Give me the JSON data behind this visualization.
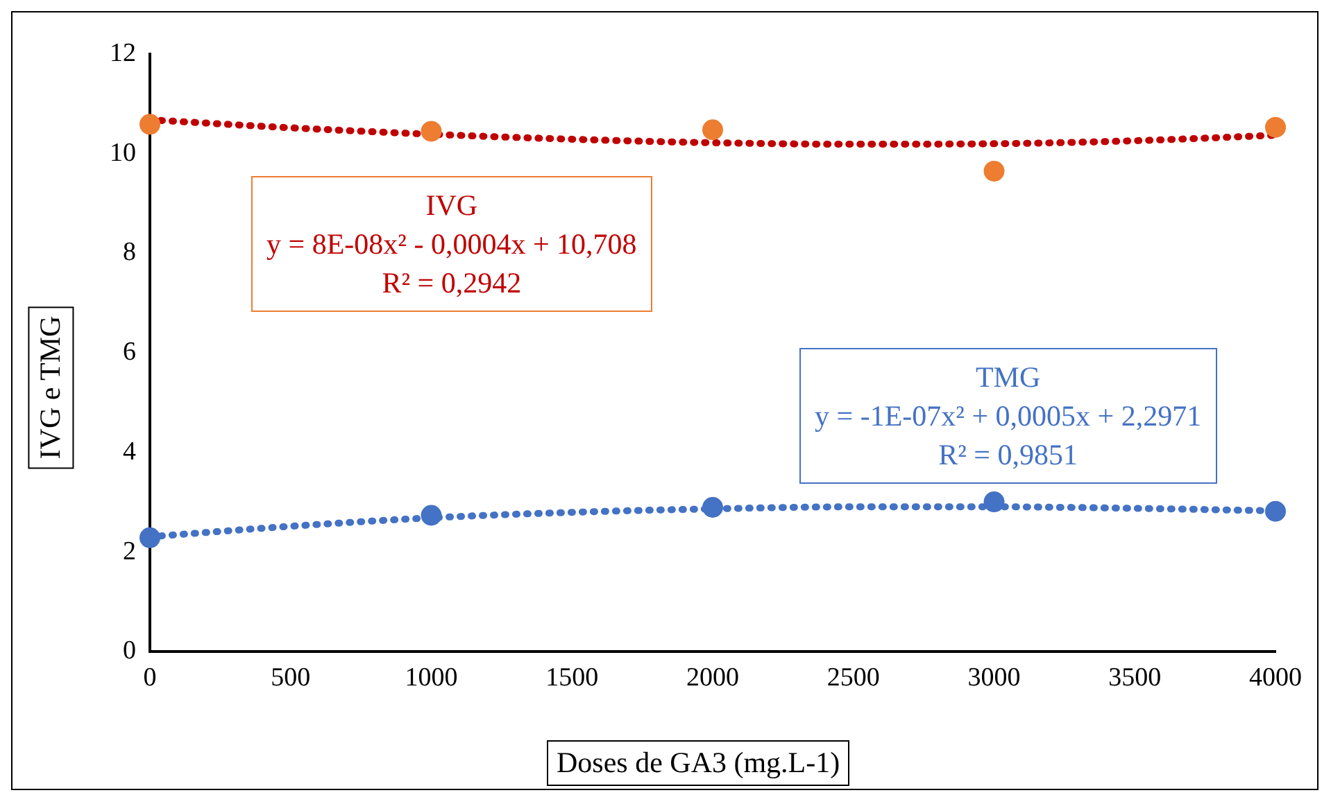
{
  "chart_data": {
    "type": "scatter",
    "xlabel": "Doses de GA3 (mg.L-1)",
    "ylabel": "IVG e TMG",
    "x": [
      0,
      1000,
      2000,
      3000,
      4000
    ],
    "xlim": [
      0,
      4000
    ],
    "xticks": [
      0,
      500,
      1000,
      1500,
      2000,
      2500,
      3000,
      3500,
      4000
    ],
    "ylim": [
      0,
      12
    ],
    "yticks": [
      0,
      2,
      4,
      6,
      8,
      10,
      12
    ],
    "grid": false,
    "legend": false,
    "marker": "circle",
    "series": [
      {
        "type": "line",
        "color": "#c00000",
        "line_style": "dotted",
        "marker": "none",
        "x": [
          0,
          500,
          1000,
          1500,
          2000,
          2500,
          3000,
          3500,
          4000
        ],
        "values": [
          10.68,
          10.52,
          10.39,
          10.29,
          10.22,
          10.19,
          10.2,
          10.26,
          10.37
        ]
      },
      {
        "type": "line",
        "color": "#4472c4",
        "line_style": "dotted",
        "marker": "none",
        "x": [
          0,
          500,
          1000,
          1500,
          2000,
          2500,
          3000,
          3500,
          4000
        ],
        "values": [
          2.31,
          2.52,
          2.69,
          2.8,
          2.87,
          2.91,
          2.91,
          2.88,
          2.83
        ]
      },
      {
        "color": "#ed7d31",
        "values": [
          10.59,
          10.45,
          10.48,
          9.65,
          10.53
        ]
      },
      {
        "color": "#4472c4",
        "values": [
          2.29,
          2.74,
          2.9,
          3.01,
          2.82
        ]
      }
    ],
    "annotations": [
      "IVG\ny = 8E-08x² - 0,0004x + 10,708\nR² = 0,2942",
      "TMG\ny = -1E-07x² + 0,0005x + 2,2971\nR² = 0,9851"
    ]
  }
}
